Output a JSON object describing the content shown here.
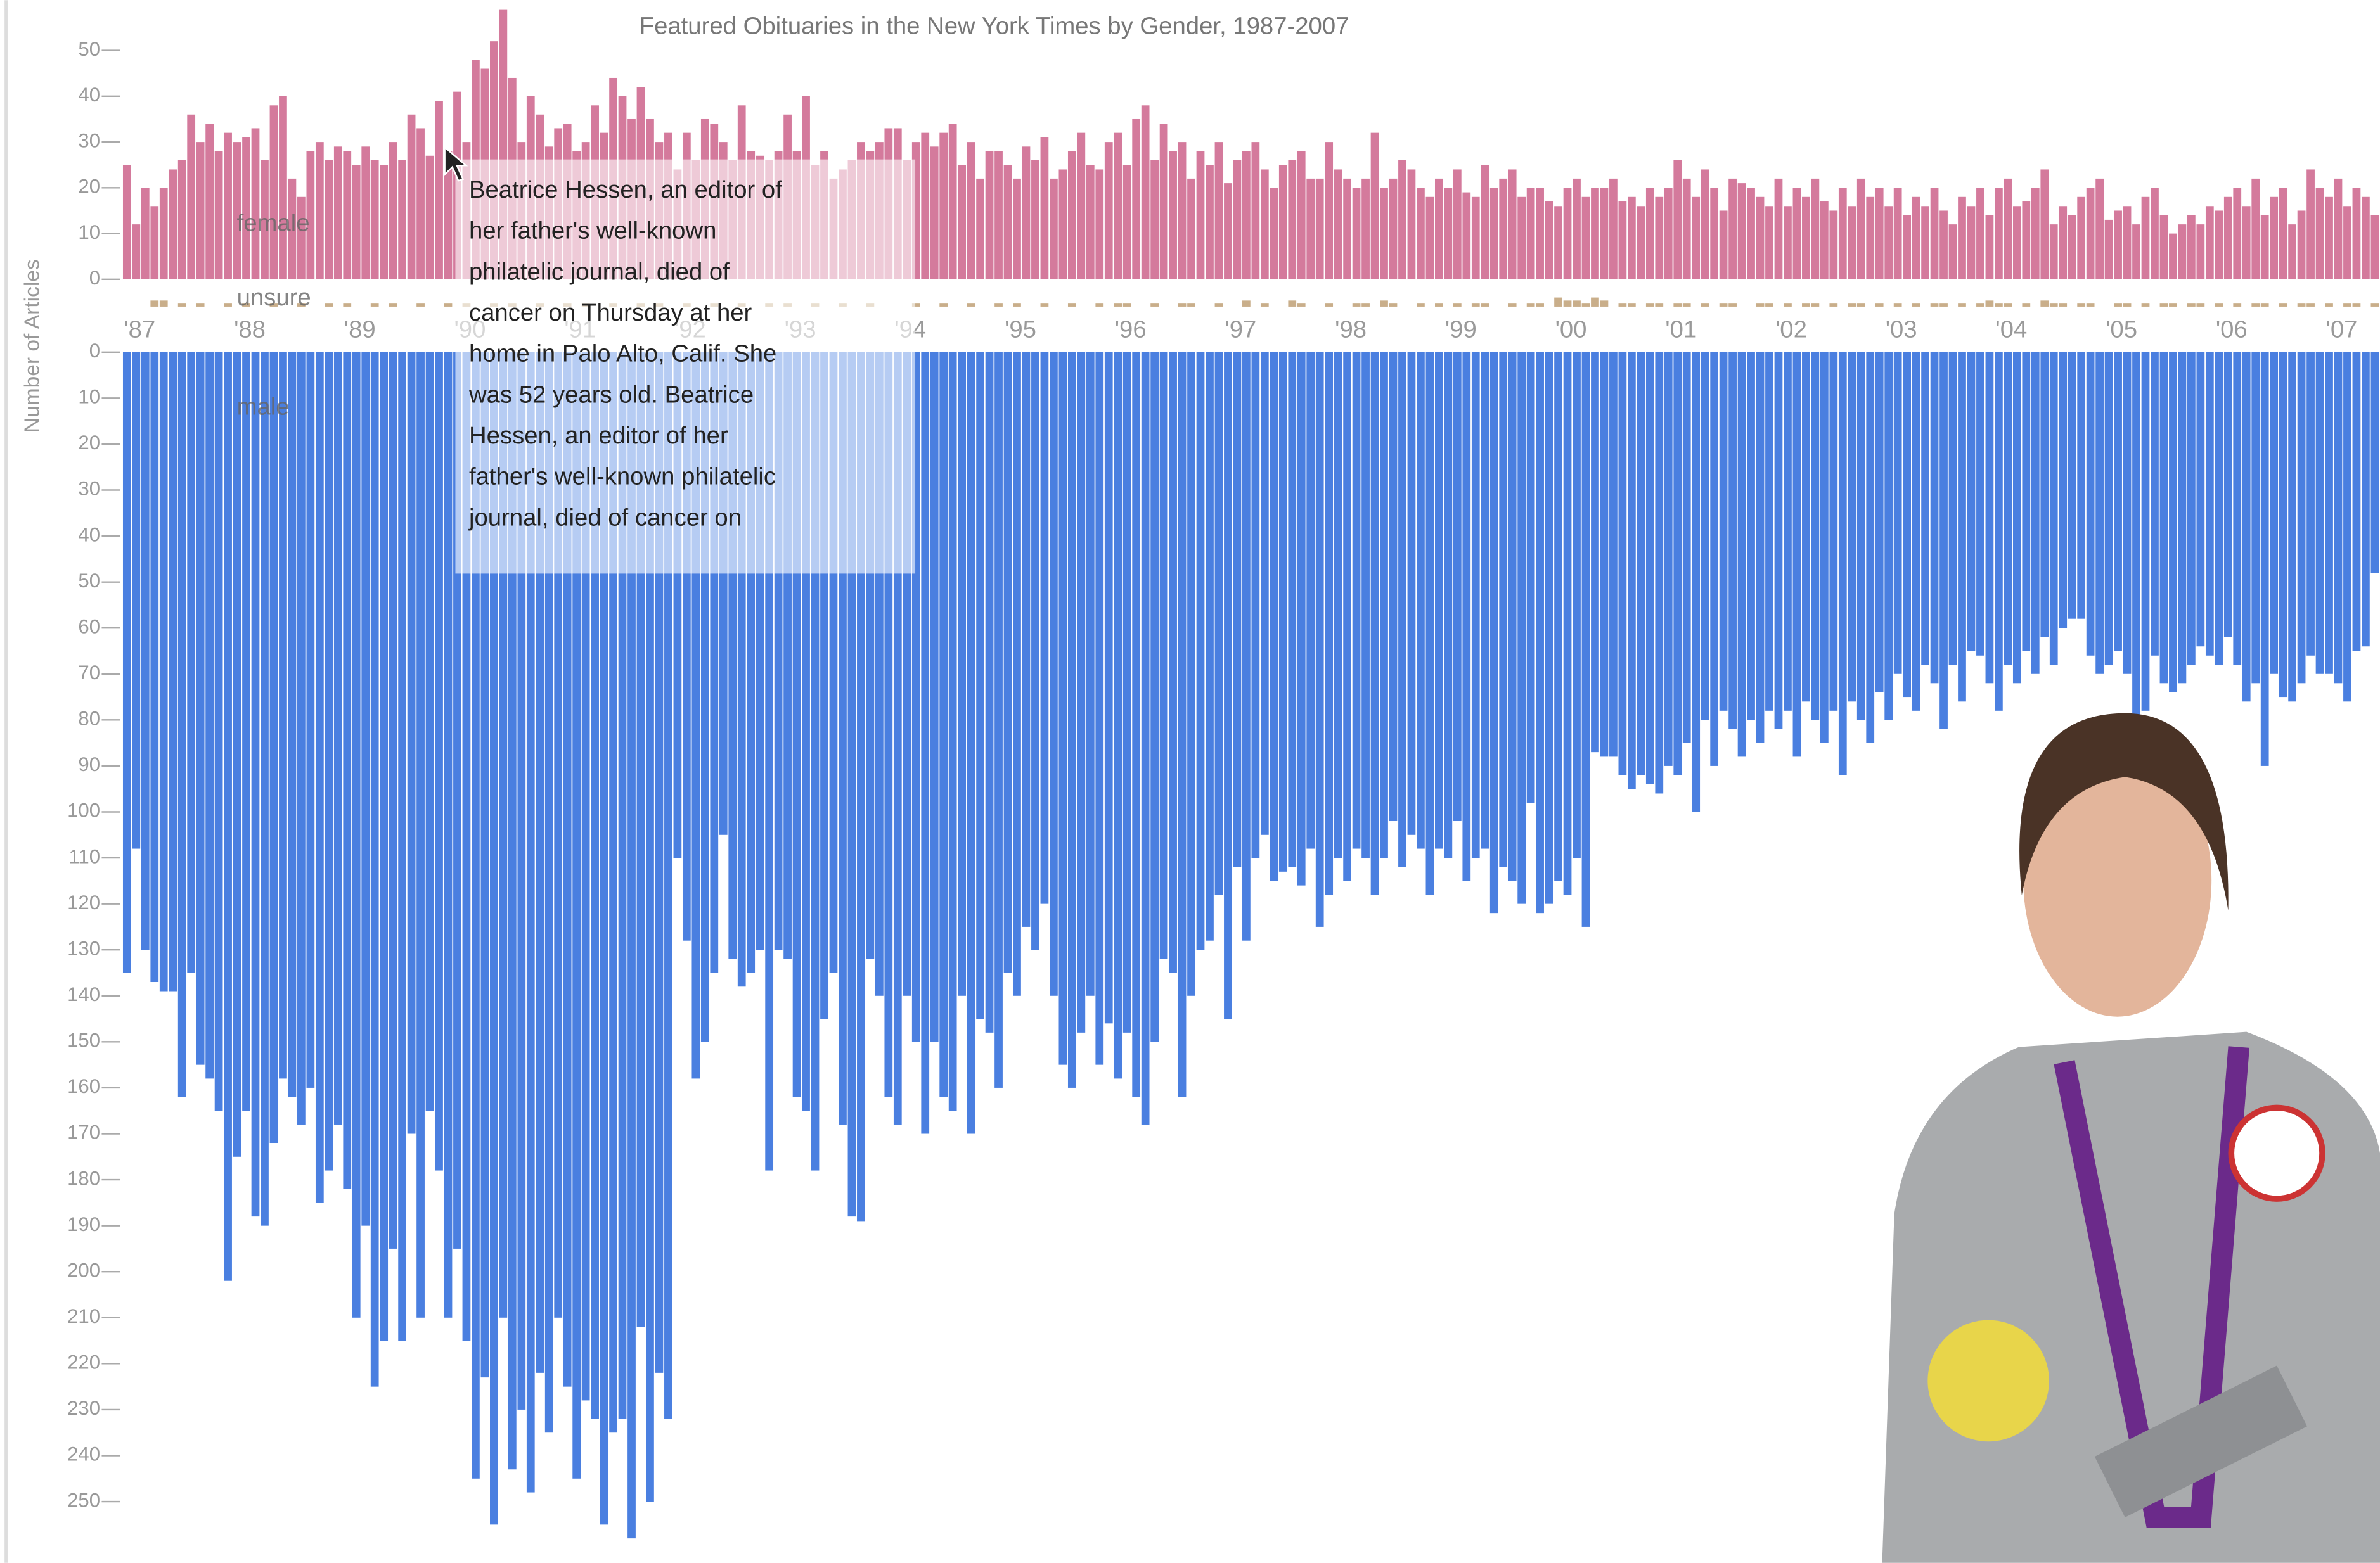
{
  "chart_data": {
    "type": "bar",
    "title": "Featured Obituaries in the New York Times by Gender, 1987-2007",
    "y_label": "Number of Articles",
    "categories": [
      "'87",
      null,
      null,
      null,
      null,
      null,
      null,
      null,
      null,
      null,
      null,
      null,
      "'88",
      null,
      null,
      null,
      null,
      null,
      null,
      null,
      null,
      null,
      null,
      null,
      "'89",
      null,
      null,
      null,
      null,
      null,
      null,
      null,
      null,
      null,
      null,
      null,
      "'90",
      null,
      null,
      null,
      null,
      null,
      null,
      null,
      null,
      null,
      null,
      null,
      "'91",
      null,
      null,
      null,
      null,
      null,
      null,
      null,
      null,
      null,
      null,
      null,
      "'92",
      null,
      null,
      null,
      null,
      null,
      null,
      null,
      null,
      null,
      null,
      null,
      "'93",
      null,
      null,
      null,
      null,
      null,
      null,
      null,
      null,
      null,
      null,
      null,
      "'94",
      null,
      null,
      null,
      null,
      null,
      null,
      null,
      null,
      null,
      null,
      null,
      "'95",
      null,
      null,
      null,
      null,
      null,
      null,
      null,
      null,
      null,
      null,
      null,
      "'96",
      null,
      null,
      null,
      null,
      null,
      null,
      null,
      null,
      null,
      null,
      null,
      "'97",
      null,
      null,
      null,
      null,
      null,
      null,
      null,
      null,
      null,
      null,
      null,
      "'98",
      null,
      null,
      null,
      null,
      null,
      null,
      null,
      null,
      null,
      null,
      null,
      "'99",
      null,
      null,
      null,
      null,
      null,
      null,
      null,
      null,
      null,
      null,
      null,
      "'00",
      null,
      null,
      null,
      null,
      null,
      null,
      null,
      null,
      null,
      null,
      null,
      "'01",
      null,
      null,
      null,
      null,
      null,
      null,
      null,
      null,
      null,
      null,
      null,
      "'02",
      null,
      null,
      null,
      null,
      null,
      null,
      null,
      null,
      null,
      null,
      null,
      "'03",
      null,
      null,
      null,
      null,
      null,
      null,
      null,
      null,
      null,
      null,
      null,
      "'04",
      null,
      null,
      null,
      null,
      null,
      null,
      null,
      null,
      null,
      null,
      null,
      "'05",
      null,
      null,
      null,
      null,
      null,
      null,
      null,
      null,
      null,
      null,
      null,
      "'06",
      null,
      null,
      null,
      null,
      null,
      null,
      null,
      null,
      null,
      null,
      null,
      "'07",
      null,
      null,
      null,
      null,
      null
    ],
    "series": [
      {
        "name": "female",
        "color": "#d47a9c",
        "ylim": [
          0,
          60
        ],
        "yticks": [
          0,
          10,
          20,
          30,
          40,
          50
        ],
        "values": [
          25,
          12,
          20,
          16,
          20,
          24,
          26,
          36,
          30,
          34,
          28,
          32,
          30,
          31,
          33,
          26,
          38,
          40,
          22,
          18,
          28,
          30,
          26,
          29,
          28,
          25,
          29,
          26,
          25,
          30,
          26,
          36,
          33,
          27,
          39,
          28,
          41,
          30,
          48,
          46,
          52,
          59,
          44,
          30,
          40,
          36,
          29,
          33,
          34,
          28,
          30,
          38,
          32,
          44,
          40,
          35,
          42,
          35,
          30,
          32,
          24,
          32,
          26,
          35,
          34,
          30,
          26,
          38,
          28,
          27,
          26,
          28,
          36,
          28,
          40,
          25,
          28,
          22,
          24,
          26,
          30,
          28,
          30,
          33,
          33,
          26,
          30,
          32,
          29,
          32,
          34,
          25,
          30,
          22,
          28,
          28,
          25,
          22,
          29,
          26,
          31,
          22,
          24,
          28,
          32,
          25,
          24,
          30,
          32,
          25,
          35,
          38,
          26,
          34,
          28,
          30,
          22,
          28,
          25,
          30,
          21,
          26,
          28,
          30,
          24,
          20,
          25,
          26,
          28,
          22,
          22,
          30,
          24,
          22,
          20,
          22,
          32,
          20,
          22,
          26,
          24,
          20,
          18,
          22,
          20,
          24,
          19,
          18,
          25,
          20,
          22,
          24,
          18,
          20,
          20,
          17,
          16,
          20,
          22,
          18,
          20,
          20,
          22,
          17,
          18,
          16,
          20,
          18,
          20,
          26,
          22,
          18,
          24,
          20,
          15,
          22,
          21,
          20,
          18,
          16,
          22,
          16,
          20,
          18,
          22,
          17,
          15,
          20,
          16,
          22,
          18,
          20,
          16,
          20,
          14,
          18,
          16,
          20,
          15,
          12,
          18,
          16,
          20,
          14,
          20,
          22,
          16,
          17,
          20,
          24,
          12,
          16,
          14,
          18,
          20,
          22,
          13,
          15,
          16,
          12,
          18,
          20,
          14,
          10,
          12,
          14,
          12,
          16,
          15,
          18,
          20,
          16,
          22,
          14,
          18,
          20,
          12,
          15,
          24,
          20,
          18,
          22,
          16,
          20,
          18,
          14
        ]
      },
      {
        "name": "unsure",
        "color": "#c9ae8a",
        "ylim": [
          0,
          5
        ],
        "values": [
          0,
          0,
          0,
          2,
          2,
          0,
          1,
          0,
          1,
          0,
          0,
          1,
          0,
          1,
          0,
          0,
          1,
          0,
          0,
          1,
          0,
          0,
          1,
          0,
          1,
          0,
          0,
          1,
          0,
          1,
          0,
          0,
          1,
          0,
          0,
          1,
          0,
          1,
          0,
          0,
          1,
          0,
          1,
          0,
          0,
          1,
          0,
          0,
          1,
          0,
          1,
          0,
          0,
          1,
          0,
          0,
          1,
          0,
          1,
          0,
          0,
          1,
          0,
          0,
          1,
          0,
          0,
          1,
          0,
          0,
          1,
          0,
          1,
          0,
          0,
          1,
          0,
          0,
          1,
          0,
          0,
          1,
          0,
          0,
          0,
          0,
          1,
          0,
          0,
          1,
          0,
          0,
          1,
          0,
          0,
          1,
          0,
          1,
          0,
          0,
          1,
          0,
          0,
          1,
          0,
          0,
          1,
          0,
          1,
          1,
          0,
          0,
          1,
          0,
          0,
          1,
          1,
          0,
          0,
          1,
          0,
          0,
          2,
          0,
          1,
          0,
          0,
          2,
          1,
          0,
          0,
          1,
          0,
          0,
          1,
          1,
          0,
          2,
          1,
          0,
          0,
          1,
          0,
          1,
          0,
          1,
          0,
          1,
          1,
          0,
          0,
          1,
          0,
          1,
          1,
          0,
          3,
          2,
          2,
          1,
          3,
          2,
          0,
          1,
          1,
          0,
          1,
          1,
          0,
          1,
          1,
          0,
          1,
          0,
          1,
          1,
          0,
          0,
          1,
          1,
          0,
          1,
          0,
          1,
          1,
          0,
          1,
          0,
          1,
          1,
          0,
          1,
          0,
          1,
          0,
          1,
          0,
          1,
          1,
          0,
          1,
          0,
          1,
          2,
          1,
          1,
          0,
          1,
          0,
          2,
          1,
          1,
          0,
          1,
          1,
          0,
          0,
          1,
          1,
          0,
          1,
          0,
          1,
          1,
          0,
          1,
          1,
          0,
          1,
          0,
          1,
          0,
          1,
          1,
          0,
          1,
          0,
          1,
          1,
          0,
          1,
          0,
          1,
          1,
          0,
          1
        ]
      },
      {
        "name": "male",
        "color": "#4a7fe0",
        "ylim": [
          0,
          263
        ],
        "yticks": [
          0,
          10,
          20,
          30,
          40,
          50,
          60,
          70,
          80,
          90,
          100,
          110,
          120,
          130,
          140,
          150,
          160,
          170,
          180,
          190,
          200,
          210,
          220,
          230,
          240,
          250
        ],
        "values": [
          135,
          108,
          130,
          137,
          139,
          139,
          162,
          135,
          155,
          158,
          165,
          202,
          175,
          165,
          188,
          190,
          172,
          158,
          162,
          168,
          160,
          185,
          178,
          168,
          182,
          210,
          190,
          225,
          215,
          195,
          215,
          170,
          210,
          165,
          178,
          210,
          195,
          215,
          245,
          223,
          255,
          210,
          243,
          230,
          248,
          222,
          235,
          210,
          225,
          245,
          228,
          232,
          255,
          235,
          232,
          258,
          212,
          250,
          222,
          232,
          110,
          128,
          158,
          150,
          135,
          105,
          132,
          138,
          135,
          130,
          178,
          130,
          132,
          162,
          165,
          178,
          145,
          135,
          168,
          188,
          189,
          132,
          140,
          162,
          168,
          140,
          150,
          170,
          150,
          162,
          165,
          140,
          170,
          145,
          148,
          160,
          135,
          140,
          125,
          130,
          120,
          140,
          155,
          160,
          148,
          140,
          155,
          146,
          158,
          148,
          162,
          168,
          150,
          132,
          135,
          162,
          140,
          130,
          128,
          118,
          145,
          112,
          128,
          110,
          105,
          115,
          113,
          112,
          116,
          108,
          125,
          118,
          110,
          115,
          108,
          110,
          118,
          110,
          102,
          112,
          105,
          108,
          118,
          108,
          110,
          102,
          115,
          110,
          108,
          122,
          112,
          115,
          120,
          98,
          122,
          120,
          115,
          118,
          110,
          125,
          87,
          88,
          88,
          92,
          95,
          92,
          94,
          96,
          90,
          92,
          85,
          100,
          80,
          90,
          78,
          82,
          88,
          80,
          85,
          78,
          82,
          78,
          88,
          76,
          80,
          85,
          78,
          92,
          76,
          80,
          85,
          74,
          80,
          70,
          75,
          78,
          68,
          72,
          82,
          68,
          76,
          65,
          66,
          72,
          78,
          68,
          72,
          65,
          70,
          62,
          68,
          60,
          58,
          58,
          66,
          70,
          68,
          65,
          70,
          82,
          78,
          66,
          72,
          74,
          72,
          68,
          64,
          66,
          68,
          62,
          68,
          76,
          72,
          90,
          70,
          75,
          76,
          72,
          66,
          70,
          70,
          72,
          76,
          65,
          64,
          48
        ]
      }
    ],
    "tooltip": [
      "Beatrice Hessen, an editor of",
      "her father's well-known",
      "philatelic journal, died of",
      "cancer on Thursday at her",
      "home in Palo Alto, Calif. She",
      "was 52 years old. Beatrice",
      "Hessen, an editor of her",
      "father's well-known philatelic",
      "journal, died of cancer on"
    ]
  }
}
